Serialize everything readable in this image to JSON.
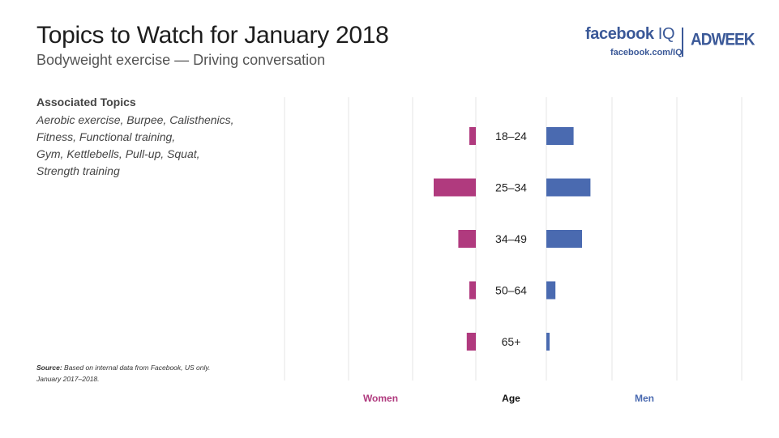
{
  "header": {
    "title": "Topics to Watch for January 2018",
    "subtitle": "Bodyweight exercise — Driving conversation"
  },
  "branding": {
    "facebook_word": "facebook",
    "iq_word": "IQ",
    "url": "facebook.com/IQ",
    "adweek": "ADWEEK",
    "brand_color": "#3b5998"
  },
  "associated_topics": {
    "heading": "Associated Topics",
    "lines": [
      "Aerobic exercise, Burpee, Calisthenics,",
      "Fitness, Functional training,",
      "Gym, Kettlebells, Pull-up, Squat,",
      "Strength training"
    ]
  },
  "source": {
    "label": "Source:",
    "text": "Based on internal data from Facebook, US only.",
    "line2": "January 2017–2018."
  },
  "chart_data": {
    "type": "bar",
    "orientation": "horizontal-butterfly",
    "categories": [
      "18–24",
      "25–34",
      "34–49",
      "50–64",
      "65+"
    ],
    "series": [
      {
        "name": "Women",
        "color": "#b03a7e",
        "values": [
          1,
          6.5,
          2.7,
          1,
          1.4
        ]
      },
      {
        "name": "Men",
        "color": "#4a6ab0",
        "values": [
          4.2,
          6.8,
          5.5,
          1.4,
          0.5
        ]
      }
    ],
    "center_label": "Age",
    "grid": true
  }
}
